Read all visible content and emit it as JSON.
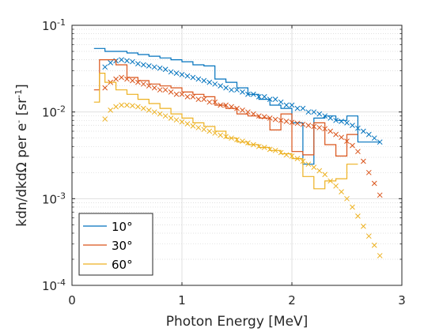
{
  "chart_data": {
    "type": "line",
    "title": "",
    "xlabel": "Photon Energy [MeV]",
    "ylabel": {
      "base": "kdn/dkdΩ per e",
      "sup1": "-",
      "mid": " [sr",
      "sup2": "-1",
      "end": "]"
    },
    "xlim": [
      0,
      3
    ],
    "ylim": [
      0.0001,
      0.1
    ],
    "yscale": "log",
    "grid": true,
    "minor_grid": true,
    "legend_position": "bottom-left",
    "x_ticks": [
      0,
      1,
      2,
      3
    ],
    "x_tick_labels": [
      "0",
      "1",
      "2",
      "3"
    ],
    "y_ticks": [
      0.0001,
      0.001,
      0.01,
      0.1
    ],
    "y_tick_labels": [
      {
        "base": "10",
        "exp": "-4"
      },
      {
        "base": "10",
        "exp": "-3"
      },
      {
        "base": "10",
        "exp": "-2"
      },
      {
        "base": "10",
        "exp": "-1"
      }
    ],
    "series": [
      {
        "name": "10°",
        "color": "#0072bd",
        "line_style": "stairs",
        "line": [
          [
            0.2,
            0.054
          ],
          [
            0.3,
            0.054
          ],
          [
            0.3,
            0.05
          ],
          [
            0.5,
            0.05
          ],
          [
            0.5,
            0.048
          ],
          [
            0.6,
            0.048
          ],
          [
            0.6,
            0.046
          ],
          [
            0.7,
            0.046
          ],
          [
            0.7,
            0.044
          ],
          [
            0.8,
            0.044
          ],
          [
            0.8,
            0.042
          ],
          [
            0.9,
            0.042
          ],
          [
            0.9,
            0.04
          ],
          [
            1.0,
            0.04
          ],
          [
            1.0,
            0.038
          ],
          [
            1.1,
            0.038
          ],
          [
            1.1,
            0.035
          ],
          [
            1.2,
            0.035
          ],
          [
            1.2,
            0.034
          ],
          [
            1.3,
            0.034
          ],
          [
            1.3,
            0.024
          ],
          [
            1.4,
            0.024
          ],
          [
            1.4,
            0.022
          ],
          [
            1.5,
            0.022
          ],
          [
            1.5,
            0.019
          ],
          [
            1.6,
            0.019
          ],
          [
            1.6,
            0.016
          ],
          [
            1.7,
            0.016
          ],
          [
            1.7,
            0.014
          ],
          [
            1.8,
            0.014
          ],
          [
            1.8,
            0.012
          ],
          [
            1.9,
            0.012
          ],
          [
            1.9,
            0.011
          ],
          [
            2.0,
            0.011
          ],
          [
            2.0,
            0.0075
          ],
          [
            2.1,
            0.0075
          ],
          [
            2.1,
            0.0025
          ],
          [
            2.2,
            0.0025
          ],
          [
            2.2,
            0.0085
          ],
          [
            2.3,
            0.0085
          ],
          [
            2.3,
            0.009
          ],
          [
            2.4,
            0.009
          ],
          [
            2.4,
            0.008
          ],
          [
            2.5,
            0.008
          ],
          [
            2.5,
            0.009
          ],
          [
            2.6,
            0.009
          ],
          [
            2.6,
            0.0045
          ],
          [
            2.8,
            0.0045
          ]
        ],
        "markers_x": [
          0.3,
          0.35,
          0.4,
          0.45,
          0.5,
          0.55,
          0.6,
          0.65,
          0.7,
          0.75,
          0.8,
          0.85,
          0.9,
          0.95,
          1.0,
          1.05,
          1.1,
          1.15,
          1.2,
          1.25,
          1.3,
          1.35,
          1.4,
          1.45,
          1.5,
          1.55,
          1.6,
          1.65,
          1.7,
          1.75,
          1.8,
          1.85,
          1.9,
          1.95,
          2.0,
          2.05,
          2.1,
          2.15,
          2.2,
          2.25,
          2.3,
          2.35,
          2.4,
          2.45,
          2.5,
          2.55,
          2.6,
          2.65,
          2.7,
          2.75,
          2.8
        ],
        "markers_y": [
          0.033,
          0.037,
          0.039,
          0.04,
          0.039,
          0.038,
          0.036,
          0.035,
          0.034,
          0.033,
          0.032,
          0.031,
          0.029,
          0.028,
          0.027,
          0.026,
          0.025,
          0.024,
          0.023,
          0.022,
          0.021,
          0.02,
          0.019,
          0.018,
          0.018,
          0.017,
          0.016,
          0.016,
          0.015,
          0.015,
          0.014,
          0.014,
          0.013,
          0.012,
          0.012,
          0.011,
          0.011,
          0.01,
          0.01,
          0.0095,
          0.009,
          0.0085,
          0.008,
          0.0078,
          0.0075,
          0.007,
          0.0065,
          0.006,
          0.0055,
          0.005,
          0.0045
        ]
      },
      {
        "name": "30°",
        "color": "#d95319",
        "line_style": "stairs",
        "line": [
          [
            0.2,
            0.018
          ],
          [
            0.25,
            0.018
          ],
          [
            0.25,
            0.04
          ],
          [
            0.4,
            0.04
          ],
          [
            0.4,
            0.035
          ],
          [
            0.5,
            0.035
          ],
          [
            0.5,
            0.025
          ],
          [
            0.6,
            0.025
          ],
          [
            0.6,
            0.023
          ],
          [
            0.7,
            0.023
          ],
          [
            0.7,
            0.021
          ],
          [
            0.8,
            0.021
          ],
          [
            0.8,
            0.02
          ],
          [
            0.9,
            0.02
          ],
          [
            0.9,
            0.019
          ],
          [
            1.0,
            0.019
          ],
          [
            1.0,
            0.017
          ],
          [
            1.1,
            0.017
          ],
          [
            1.1,
            0.016
          ],
          [
            1.2,
            0.016
          ],
          [
            1.2,
            0.015
          ],
          [
            1.3,
            0.015
          ],
          [
            1.3,
            0.012
          ],
          [
            1.4,
            0.012
          ],
          [
            1.4,
            0.011
          ],
          [
            1.5,
            0.011
          ],
          [
            1.5,
            0.0095
          ],
          [
            1.6,
            0.0095
          ],
          [
            1.6,
            0.009
          ],
          [
            1.7,
            0.009
          ],
          [
            1.7,
            0.0085
          ],
          [
            1.8,
            0.0085
          ],
          [
            1.8,
            0.0062
          ],
          [
            1.9,
            0.0062
          ],
          [
            1.9,
            0.0095
          ],
          [
            2.0,
            0.0095
          ],
          [
            2.0,
            0.0035
          ],
          [
            2.1,
            0.0035
          ],
          [
            2.1,
            0.0032
          ],
          [
            2.2,
            0.0032
          ],
          [
            2.2,
            0.0075
          ],
          [
            2.3,
            0.0075
          ],
          [
            2.3,
            0.0042
          ],
          [
            2.4,
            0.0042
          ],
          [
            2.4,
            0.0031
          ],
          [
            2.5,
            0.0031
          ],
          [
            2.5,
            0.0055
          ],
          [
            2.6,
            0.0055
          ]
        ],
        "markers_x": [
          0.3,
          0.35,
          0.4,
          0.45,
          0.5,
          0.55,
          0.6,
          0.65,
          0.7,
          0.75,
          0.8,
          0.85,
          0.9,
          0.95,
          1.0,
          1.05,
          1.1,
          1.15,
          1.2,
          1.25,
          1.3,
          1.35,
          1.4,
          1.45,
          1.5,
          1.55,
          1.6,
          1.65,
          1.7,
          1.75,
          1.8,
          1.85,
          1.9,
          1.95,
          2.0,
          2.05,
          2.1,
          2.15,
          2.2,
          2.25,
          2.3,
          2.35,
          2.4,
          2.45,
          2.5,
          2.55,
          2.6,
          2.65,
          2.7,
          2.75,
          2.8
        ],
        "markers_y": [
          0.019,
          0.022,
          0.024,
          0.025,
          0.024,
          0.023,
          0.022,
          0.021,
          0.02,
          0.019,
          0.018,
          0.018,
          0.017,
          0.016,
          0.016,
          0.015,
          0.015,
          0.014,
          0.014,
          0.013,
          0.013,
          0.012,
          0.012,
          0.0115,
          0.011,
          0.0105,
          0.01,
          0.0095,
          0.009,
          0.0088,
          0.0085,
          0.0082,
          0.008,
          0.0078,
          0.0076,
          0.0074,
          0.0072,
          0.007,
          0.0068,
          0.0066,
          0.0064,
          0.006,
          0.0055,
          0.0051,
          0.0046,
          0.0041,
          0.0035,
          0.0027,
          0.002,
          0.0015,
          0.0011
        ]
      },
      {
        "name": "60°",
        "color": "#edb120",
        "line_style": "stairs",
        "line": [
          [
            0.2,
            0.013
          ],
          [
            0.25,
            0.013
          ],
          [
            0.25,
            0.028
          ],
          [
            0.3,
            0.028
          ],
          [
            0.3,
            0.022
          ],
          [
            0.4,
            0.022
          ],
          [
            0.4,
            0.018
          ],
          [
            0.5,
            0.018
          ],
          [
            0.5,
            0.016
          ],
          [
            0.6,
            0.016
          ],
          [
            0.6,
            0.014
          ],
          [
            0.7,
            0.014
          ],
          [
            0.7,
            0.0125
          ],
          [
            0.8,
            0.0125
          ],
          [
            0.8,
            0.011
          ],
          [
            0.9,
            0.011
          ],
          [
            0.9,
            0.0095
          ],
          [
            1.0,
            0.0095
          ],
          [
            1.0,
            0.0085
          ],
          [
            1.1,
            0.0085
          ],
          [
            1.1,
            0.0075
          ],
          [
            1.2,
            0.0075
          ],
          [
            1.2,
            0.0068
          ],
          [
            1.3,
            0.0068
          ],
          [
            1.3,
            0.006
          ],
          [
            1.4,
            0.006
          ],
          [
            1.4,
            0.005
          ],
          [
            1.5,
            0.005
          ],
          [
            1.5,
            0.0045
          ],
          [
            1.6,
            0.0045
          ],
          [
            1.6,
            0.0042
          ],
          [
            1.7,
            0.0042
          ],
          [
            1.7,
            0.0039
          ],
          [
            1.8,
            0.0039
          ],
          [
            1.8,
            0.0036
          ],
          [
            1.9,
            0.0036
          ],
          [
            1.9,
            0.0033
          ],
          [
            2.0,
            0.0033
          ],
          [
            2.0,
            0.0029
          ],
          [
            2.1,
            0.0029
          ],
          [
            2.1,
            0.0018
          ],
          [
            2.2,
            0.0018
          ],
          [
            2.2,
            0.0013
          ],
          [
            2.3,
            0.0013
          ],
          [
            2.3,
            0.0016
          ],
          [
            2.4,
            0.0016
          ],
          [
            2.4,
            0.0017
          ],
          [
            2.5,
            0.0017
          ],
          [
            2.5,
            0.0025
          ],
          [
            2.6,
            0.0025
          ]
        ],
        "markers_x": [
          0.3,
          0.35,
          0.4,
          0.45,
          0.5,
          0.55,
          0.6,
          0.65,
          0.7,
          0.75,
          0.8,
          0.85,
          0.9,
          0.95,
          1.0,
          1.05,
          1.1,
          1.15,
          1.2,
          1.25,
          1.3,
          1.35,
          1.4,
          1.45,
          1.5,
          1.55,
          1.6,
          1.65,
          1.7,
          1.75,
          1.8,
          1.85,
          1.9,
          1.95,
          2.0,
          2.05,
          2.1,
          2.15,
          2.2,
          2.25,
          2.3,
          2.35,
          2.4,
          2.45,
          2.5,
          2.55,
          2.6,
          2.65,
          2.7,
          2.75,
          2.8
        ],
        "markers_y": [
          0.0083,
          0.0105,
          0.0115,
          0.012,
          0.012,
          0.0118,
          0.0115,
          0.011,
          0.0105,
          0.01,
          0.0095,
          0.009,
          0.0085,
          0.0081,
          0.0077,
          0.0073,
          0.0069,
          0.0066,
          0.0063,
          0.006,
          0.0057,
          0.0054,
          0.0052,
          0.005,
          0.0048,
          0.0046,
          0.0044,
          0.0042,
          0.004,
          0.0039,
          0.0037,
          0.0036,
          0.0034,
          0.0032,
          0.0031,
          0.0029,
          0.0027,
          0.0025,
          0.0023,
          0.0021,
          0.0019,
          0.0016,
          0.0014,
          0.0012,
          0.001,
          0.0008,
          0.00063,
          0.00048,
          0.00037,
          0.00029,
          0.00022
        ]
      }
    ]
  }
}
